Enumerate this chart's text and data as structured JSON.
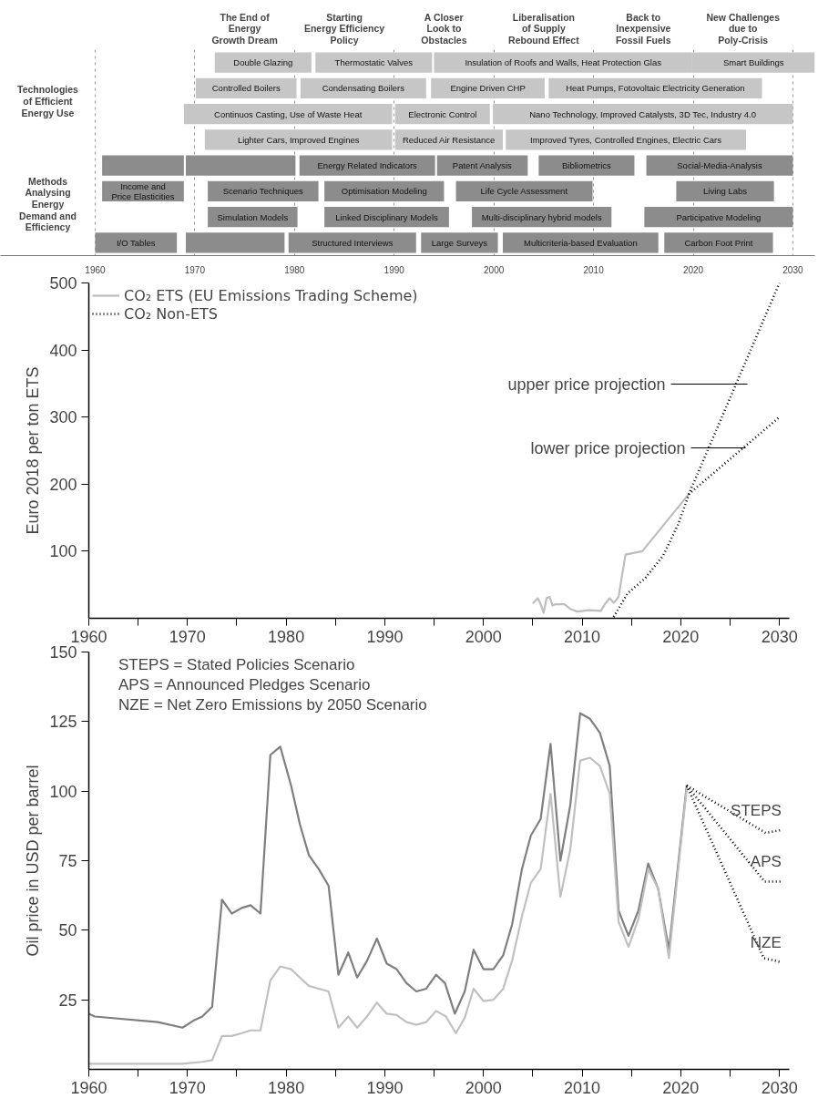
{
  "chart_data": [
    {
      "type": "bar",
      "orientation": "horizontal",
      "categories": [
        null,
        null,
        null,
        null,
        null,
        null,
        null,
        null
      ],
      "xlim": [
        1950.5,
        2032.2
      ],
      "xticks": [
        1960,
        1970,
        1980,
        1990,
        2000,
        2010,
        2020,
        2030
      ],
      "grid": "x",
      "annotations": [
        "The End of\nEnergy\nGrowth Dream",
        "Starting\nEnergy Efficiency\nPolicy",
        "A Closer\nLook to\nObstacles",
        "Liberalisation\nof Supply\nRebound Effect",
        "Back to\nInexpensive\nFossil Fuels",
        "New Challenges\ndue to\nPoly-Crisis",
        "Technologies\nof Efficient\nEnergy Use",
        "Methods\nAnalysing\nEnergy\nDemand and\nEfficiency"
      ],
      "series": [
        {
          "base": [
            1972.0,
            1970.1,
            1968.9,
            1971.0,
            1960.7,
            1960.7,
            1971.3,
            1960.0
          ],
          "values": [
            9.7,
            10.1,
            20.9,
            18.8,
            8.2,
            8.2,
            9.0,
            8.2
          ],
          "colors": [
            "#c6c6c6",
            "#c6c6c6",
            "#c6c6c6",
            "#c6c6c6",
            "#8c8c8c",
            "#8c8c8c",
            "#8c8c8c",
            "#8c8c8c"
          ],
          "value_labels": [
            "Double Glazing",
            "Controlled Boilers",
            "Continuos Casting, Use of Waste Heat",
            "Lighter Cars, Improved Engines",
            null,
            "Income and\nPrice Elasticities",
            "Simulation Models",
            "I/O Tables"
          ]
        },
        {
          "base": [
            1982.1,
            1980.6,
            1990.1,
            1990.1,
            1969.1,
            1971.3,
            1983.0,
            1969.1
          ],
          "values": [
            11.7,
            12.6,
            9.5,
            10.8,
            11.0,
            11.1,
            12.5,
            9.9
          ],
          "colors": [
            "#c6c6c6",
            "#c6c6c6",
            "#c6c6c6",
            "#c6c6c6",
            "#8c8c8c",
            "#8c8c8c",
            "#8c8c8c",
            "#8c8c8c"
          ],
          "value_labels": [
            "Thermostatic Valves",
            "Condensating Boilers",
            "Electronic Control",
            "Reduced Air Resistance",
            null,
            "Scenario Techniques",
            "Linked Disciplinary Models",
            null
          ]
        },
        {
          "base": [
            1994.0,
            1993.7,
            1999.9,
            2001.2,
            1980.5,
            1983.0,
            1997.8,
            1979.4
          ],
          "values": [
            25.9,
            11.4,
            30.1,
            24.1,
            13.6,
            12.0,
            14.0,
            12.8
          ],
          "colors": [
            "#c6c6c6",
            "#c6c6c6",
            "#c6c6c6",
            "#c6c6c6",
            "#8c8c8c",
            "#8c8c8c",
            "#8c8c8c",
            "#8c8c8c"
          ],
          "value_labels": [
            "Insulation of Roofs and Walls, Heat Protection Glas",
            "Engine Driven CHP",
            "Nano Technology, Improved Catalysts, 3D Tec, Industry 4.0",
            "Improved Tyres, Controlled Engines, Electric Cars",
            "Energy Related Indicators",
            "Optimisation Modeling",
            "Multi-disciplinary hybrid models",
            "Structured Interviews"
          ]
        },
        {
          "base": [
            2019.9,
            2005.5,
            null,
            null,
            1994.3,
            1996.2,
            2015.1,
            1992.7
          ],
          "values": [
            12.3,
            21.4,
            null,
            null,
            9.1,
            13.7,
            14.9,
            7.7
          ],
          "colors": [
            "#c6c6c6",
            "#c6c6c6",
            "#c6c6c6",
            "#c6c6c6",
            "#8c8c8c",
            "#8c8c8c",
            "#8c8c8c",
            "#8c8c8c"
          ],
          "value_labels": [
            "Smart Buildings",
            "Heat Pumps, Fotovoltaic Electricity Generation",
            null,
            null,
            "Patent Analysis",
            "Life Cycle Assessment",
            "Participative Modeling",
            "Large Surveys"
          ]
        },
        {
          "base": [
            null,
            null,
            null,
            null,
            2004.5,
            2018.3,
            null,
            2000.9
          ],
          "values": [
            null,
            null,
            null,
            null,
            9.6,
            9.8,
            null,
            15.6
          ],
          "colors": [
            "#c6c6c6",
            "#c6c6c6",
            "#c6c6c6",
            "#c6c6c6",
            "#8c8c8c",
            "#8c8c8c",
            "#8c8c8c",
            "#8c8c8c"
          ],
          "value_labels": [
            null,
            null,
            null,
            null,
            "Bibliometrics",
            "Living Labs",
            null,
            "Multicriteria-based Evaluation"
          ]
        },
        {
          "base": [
            null,
            null,
            null,
            null,
            2015.3,
            null,
            null,
            2017.1
          ],
          "values": [
            null,
            null,
            null,
            null,
            14.7,
            null,
            null,
            10.9
          ],
          "colors": [
            "#c6c6c6",
            "#c6c6c6",
            "#c6c6c6",
            "#c6c6c6",
            "#8c8c8c",
            "#8c8c8c",
            "#8c8c8c",
            "#8c8c8c"
          ],
          "value_labels": [
            null,
            null,
            null,
            null,
            "Social-Media-Analysis",
            null,
            null,
            "Carbon Foot Print"
          ]
        }
      ]
    },
    {
      "type": "line",
      "ylabel": "Euro 2018 per ton ETS",
      "xlim": [
        1960,
        2031
      ],
      "ylim": [
        0,
        500
      ],
      "xticks": [
        1960,
        {
          "value": 1965,
          "label": null
        },
        1970,
        {
          "value": 1975,
          "label": null
        },
        1980,
        {
          "value": 1985,
          "label": null
        },
        1990,
        {
          "value": 1995,
          "label": null
        },
        2000,
        {
          "value": 2005,
          "label": null
        },
        2010,
        {
          "value": 2015,
          "label": null
        },
        2020,
        {
          "value": 2025,
          "label": null
        },
        2030
      ],
      "yticks": [
        100,
        200,
        300,
        400,
        500
      ],
      "legend": "top left",
      "grid": false,
      "annotations": [
        "upper price projection",
        "lower price projection"
      ],
      "series": [
        {
          "name": "CO₂ ETS (EU Emissions Trading Scheme)",
          "color": "#bdbdbd",
          "line_style": "solid",
          "x": [
            2005.0,
            2005.5,
            2005.8,
            2006.1,
            2006.4,
            2006.7,
            2007.0,
            2007.3,
            2008.2,
            2008.8,
            2009.5,
            2010.7,
            2011.9,
            2012.3,
            2012.8,
            2013.2,
            2013.7,
            2014.0,
            2014.4,
            2016.1,
            2020.8
          ],
          "values": [
            22,
            30,
            21,
            8,
            30,
            32,
            19,
            21,
            21,
            14,
            10,
            12,
            11,
            21,
            30,
            23,
            32,
            60,
            95,
            100,
            185
          ]
        },
        {
          "name": "CO₂ Non-ETS",
          "color": "#000000",
          "line_style": "dotted",
          "x": [
            2013.2,
            2014.6,
            2016.4,
            2018.2,
            2019.7,
            2020.9,
            2030
          ],
          "values": [
            2,
            37,
            60,
            93,
            139,
            188,
            500
          ]
        },
        {
          "color": "#000000",
          "line_style": "dotted",
          "x": [
            2020.8,
            2030
          ],
          "values": [
            185,
            300
          ]
        }
      ]
    },
    {
      "type": "line",
      "ylabel": "Oil price in USD per barrel",
      "xlim": [
        1960,
        2031
      ],
      "ylim": [
        0,
        150
      ],
      "xticks": [
        1960,
        {
          "value": 1965,
          "label": null
        },
        1970,
        {
          "value": 1975,
          "label": null
        },
        1980,
        {
          "value": 1985,
          "label": null
        },
        1990,
        {
          "value": 1995,
          "label": null
        },
        2000,
        {
          "value": 2005,
          "label": null
        },
        2010,
        {
          "value": 2015,
          "label": null
        },
        2020,
        {
          "value": 2025,
          "label": null
        },
        2030
      ],
      "yticks": [
        25,
        50,
        75,
        100,
        125,
        150
      ],
      "grid": false,
      "annotations": [
        "STEPS = Stated Policies Scenario",
        "APS = Announced Pledges Scenario",
        "NZE = Net Zero Emissions by 2050 Scenario"
      ],
      "series": [
        {
          "color": "#7f7f7f",
          "line_style": "solid",
          "x": [
            1960.0,
            1960.6,
            1967.0,
            1969.5,
            1970.6,
            1971.5,
            1972.5,
            1973.5,
            1974.5,
            1975.5,
            1976.4,
            1977.4,
            1978.4,
            1979.4,
            1980.5,
            1981.4,
            1982.3,
            1983.3,
            1984.3,
            1985.3,
            1986.3,
            1987.2,
            1988.2,
            1989.2,
            1990.2,
            1991.2,
            1992.2,
            1993.2,
            1994.2,
            1995.2,
            1996.1,
            1997.1,
            1998.1,
            1999.0,
            2000.0,
            2001.0,
            2002.0,
            2002.9,
            2003.9,
            2004.8,
            2005.8,
            2006.8,
            2007.8,
            2008.8,
            2009.8,
            2010.8,
            2011.8,
            2012.8,
            2013.7,
            2014.7,
            2015.7,
            2016.7,
            2017.7,
            2018.8,
            2020.6
          ],
          "values": [
            20,
            19,
            17,
            15,
            17.5,
            19,
            22.5,
            61,
            56,
            58,
            59,
            56,
            113,
            116,
            102,
            88,
            77,
            72,
            66,
            34,
            42,
            33,
            39,
            47,
            38,
            36,
            31,
            28,
            29,
            34,
            31,
            20,
            28,
            43,
            36,
            36,
            41,
            52,
            72,
            84,
            90,
            117,
            75,
            95,
            128,
            126,
            121,
            109,
            57,
            48,
            57,
            74,
            65,
            43,
            102
          ]
        },
        {
          "color": "#c0c0c0",
          "line_style": "solid",
          "x": [
            1960.0,
            1969.5,
            1971.5,
            1972.5,
            1973.5,
            1974.5,
            1975.5,
            1976.4,
            1977.4,
            1978.4,
            1979.4,
            1980.5,
            1981.4,
            1982.3,
            1983.3,
            1984.3,
            1985.3,
            1986.3,
            1987.2,
            1988.2,
            1989.2,
            1990.2,
            1991.2,
            1992.2,
            1993.2,
            1994.2,
            1995.2,
            1996.2,
            1997.2,
            1998.1,
            1999.0,
            2000.0,
            2001.0,
            2002.0,
            2002.9,
            2003.9,
            2004.8,
            2005.8,
            2006.8,
            2007.8,
            2008.8,
            2009.8,
            2010.8,
            2011.8,
            2012.8,
            2013.7,
            2014.7,
            2015.7,
            2016.7,
            2017.7,
            2018.8,
            2020.6
          ],
          "values": [
            2,
            2,
            2.7,
            3.3,
            12,
            12,
            13,
            14,
            14,
            32,
            37,
            36,
            33,
            30,
            29,
            28,
            15,
            19,
            15,
            19,
            24,
            20,
            19.5,
            17,
            16,
            17,
            21,
            19,
            13,
            18.5,
            29,
            24.5,
            25,
            29,
            39,
            55,
            67,
            72,
            99,
            62,
            79,
            111,
            112,
            109,
            99,
            53,
            44,
            54,
            72,
            65,
            40,
            101
          ]
        },
        {
          "name": "STEPS",
          "color": "#000000",
          "line_style": "dotted",
          "x": [
            2020.6,
            2028.6,
            2030.2
          ],
          "values": [
            102,
            85,
            86
          ]
        },
        {
          "name": "APS",
          "color": "#000000",
          "line_style": "dotted",
          "x": [
            2020.6,
            2028.5,
            2030.2
          ],
          "values": [
            102,
            67.5,
            67.5
          ]
        },
        {
          "name": "NZE",
          "color": "#000000",
          "line_style": "dotted",
          "x": [
            2020.6,
            2028.4,
            2030.2
          ],
          "values": [
            102,
            40,
            38.5
          ]
        }
      ]
    }
  ]
}
